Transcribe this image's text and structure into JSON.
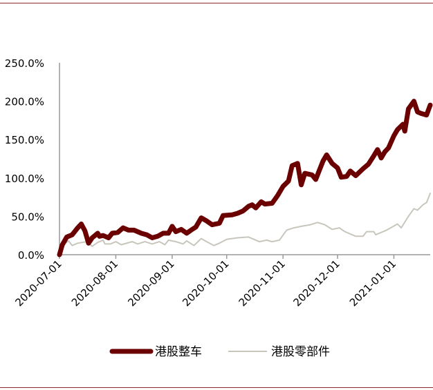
{
  "chart_data": {
    "type": "line",
    "title": "",
    "xlabel": "",
    "ylabel": "",
    "x_unit": "days since 2020-07-01",
    "xlim": [
      0,
      204
    ],
    "ylim": [
      0,
      250
    ],
    "yticks": [
      0,
      50,
      100,
      150,
      200,
      250
    ],
    "ytick_labels": [
      "0.0%",
      "50.0%",
      "100.0%",
      "150.0%",
      "200.0%",
      "250.0%"
    ],
    "xticks": [
      0,
      31,
      62,
      92,
      123,
      153,
      184
    ],
    "xtick_labels": [
      "2020-07-01",
      "2020-08-01",
      "2020-09-01",
      "2020-10-01",
      "2020-11-01",
      "2020-12-01",
      "2021-01-01"
    ],
    "grid": false,
    "legend_position": "bottom",
    "series": [
      {
        "name": "港股整车",
        "color": "#6b0000",
        "x": [
          0,
          1.5,
          4,
          7,
          10,
          12,
          14,
          16,
          18,
          21,
          22,
          24,
          27,
          29,
          32,
          35,
          38,
          41,
          45,
          48,
          51,
          54,
          57,
          60,
          62,
          64,
          67,
          70,
          73,
          75,
          78,
          81,
          84,
          88,
          90,
          95,
          98,
          101,
          104,
          106,
          108,
          111,
          113,
          117,
          120,
          123,
          126,
          128,
          131,
          133,
          135,
          139,
          141,
          143,
          145,
          147,
          150,
          153,
          155,
          158,
          160,
          163,
          167,
          170,
          173,
          175,
          177,
          179,
          181,
          184,
          186,
          189,
          190,
          192,
          195,
          197,
          199,
          202,
          204
        ],
        "values": [
          0,
          12.6,
          23,
          26,
          35,
          40,
          31,
          15,
          22,
          28,
          24,
          25,
          22,
          28,
          29,
          35,
          32,
          32,
          28,
          26,
          22,
          24,
          28,
          28,
          37,
          30,
          33,
          28,
          33,
          36,
          48,
          44,
          39,
          41,
          51,
          52,
          54,
          57,
          63,
          65,
          61,
          69,
          66,
          67,
          77,
          89,
          96,
          116,
          119,
          91,
          106,
          104,
          98,
          110,
          122,
          130,
          119,
          113,
          101,
          102,
          109,
          103,
          112,
          118,
          129,
          137,
          126,
          134,
          139,
          155,
          163,
          170,
          161,
          190,
          200,
          186,
          184,
          182,
          195
        ]
      },
      {
        "name": "港股零部件",
        "color": "#c8c6bc",
        "x": [
          0,
          2,
          5,
          7,
          10,
          15,
          18,
          21,
          24,
          25,
          28,
          31,
          34,
          40,
          43,
          47,
          51,
          55,
          58,
          60,
          64,
          68,
          70,
          74,
          78,
          81,
          85,
          88,
          92,
          98,
          104,
          110,
          114,
          117,
          121,
          125,
          129,
          133,
          138,
          142,
          146,
          150,
          154,
          157,
          163,
          167,
          169,
          173,
          174,
          180,
          186,
          188,
          192,
          195,
          197,
          200,
          202,
          204
        ],
        "values": [
          0,
          13,
          18,
          12,
          15,
          17,
          11,
          16,
          19,
          14,
          14,
          17,
          13,
          17,
          14,
          17,
          14,
          17,
          13,
          19,
          17,
          14,
          18,
          12,
          21,
          17,
          12,
          15,
          20,
          22,
          23,
          17,
          19,
          17,
          19,
          32,
          35,
          37,
          39,
          42,
          39,
          33,
          35,
          30,
          24,
          24,
          30,
          30,
          26,
          32,
          40,
          35,
          50,
          60,
          58,
          65,
          68,
          80
        ]
      }
    ]
  }
}
